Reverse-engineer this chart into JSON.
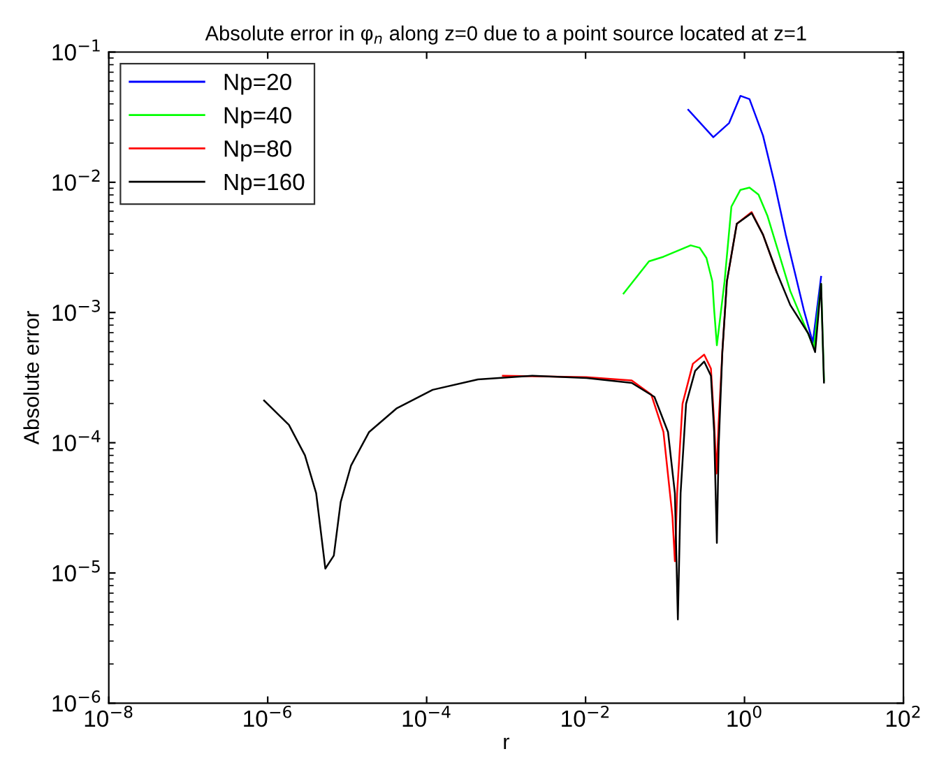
{
  "chart_data": {
    "type": "line",
    "title": "Absolute error in φ$_{n}$ along z=0 due to a point source located at z=1",
    "xlabel": "r",
    "ylabel": "Absolute error",
    "log": "xy",
    "grid": false,
    "legend": "top left",
    "line_style": "solid",
    "marker": "none",
    "xlim": [
      1e-08,
      100
    ],
    "ylim": [
      1e-06,
      0.1
    ],
    "xticks": [
      {
        "value": 1e-08,
        "label": "10$^{−8}$"
      },
      {
        "value": 1e-06,
        "label": "10$^{−6}$"
      },
      {
        "value": 0.0001,
        "label": "10$^{−4}$"
      },
      {
        "value": 0.01,
        "label": "10$^{−2}$"
      },
      {
        "value": 1,
        "label": "10$^{0}$"
      },
      {
        "value": 100,
        "label": "10$^{2}$"
      }
    ],
    "yticks": [
      {
        "value": 1e-06,
        "label": "10$^{−6}$"
      },
      {
        "value": 1e-05,
        "label": "10$^{−5}$"
      },
      {
        "value": 0.0001,
        "label": "10$^{−4}$"
      },
      {
        "value": 0.001,
        "label": "10$^{−3}$"
      },
      {
        "value": 0.01,
        "label": "10$^{−2}$"
      },
      {
        "value": 0.1,
        "label": "10$^{−1}$"
      }
    ],
    "series": [
      {
        "name": "Np=20",
        "color": "#0000ff",
        "x": [
          0.196,
          0.405,
          0.64,
          0.889,
          1.156,
          1.71,
          2.38,
          3.3,
          4.29,
          5.57,
          7.24,
          9.2
        ],
        "values": [
          0.036,
          0.0222,
          0.0285,
          0.0461,
          0.0435,
          0.0228,
          0.0099,
          0.00396,
          0.00204,
          0.00105,
          0.00059,
          0.00188
        ]
      },
      {
        "name": "Np=40",
        "color": "#00ff00",
        "x": [
          0.0301,
          0.0628,
          0.0955,
          0.21,
          0.273,
          0.332,
          0.394,
          0.415,
          0.449,
          0.561,
          0.684,
          0.889,
          1.156,
          1.5,
          1.95,
          2.71,
          3.77,
          7.45,
          9.2,
          10.0
        ],
        "values": [
          0.0014,
          0.00247,
          0.00268,
          0.00328,
          0.00314,
          0.00262,
          0.00173,
          0.00105,
          0.00056,
          0.00173,
          0.0065,
          0.00875,
          0.0091,
          0.00805,
          0.0055,
          0.00284,
          0.00146,
          0.00054,
          0.00166,
          0.0003
        ]
      },
      {
        "name": "Np=80",
        "color": "#ff0000",
        "x": [
          0.00091,
          0.0103,
          0.0381,
          0.0672,
          0.0955,
          0.124,
          0.133,
          0.142,
          0.166,
          0.224,
          0.311,
          0.378,
          0.415,
          0.444,
          0.473,
          0.526,
          0.6,
          0.8,
          1.23,
          1.71,
          2.54
        ],
        "values": [
          0.000327,
          0.000319,
          0.000301,
          0.000234,
          0.000121,
          2.7e-05,
          1.23e-05,
          4.1e-05,
          0.000199,
          0.000404,
          0.000475,
          0.000371,
          0.000143,
          5.8e-05,
          0.000143,
          0.000497,
          0.00173,
          0.0048,
          0.0059,
          0.00396,
          0.00204
        ]
      },
      {
        "name": "Np=160",
        "color": "#000000",
        "x": [
          9e-07,
          1.85e-06,
          2.94e-06,
          4.07e-06,
          5.31e-06,
          6.79e-06,
          8.28e-06,
          1.12e-05,
          1.89e-05,
          4.16e-05,
          0.000119,
          0.000442,
          0.00213,
          0.0103,
          0.0381,
          0.0735,
          0.109,
          0.133,
          0.145,
          0.157,
          0.184,
          0.239,
          0.311,
          0.378,
          0.415,
          0.449,
          0.473,
          0.526,
          0.6,
          0.8,
          1.23,
          1.71,
          2.54,
          3.77,
          6.35,
          7.74,
          9.2,
          10.0
        ],
        "values": [
          0.000211,
          0.000137,
          8e-05,
          4.1e-05,
          1.08e-05,
          1.36e-05,
          3.5e-05,
          6.7e-05,
          0.000121,
          0.000183,
          0.000255,
          0.000306,
          0.000327,
          0.000314,
          0.000288,
          0.000225,
          0.000121,
          4.1e-05,
          4.4e-06,
          4.1e-05,
          0.000199,
          0.000356,
          0.00042,
          0.000327,
          0.000121,
          1.7e-05,
          9.4e-05,
          0.000497,
          0.00173,
          0.0048,
          0.0058,
          0.00396,
          0.00204,
          0.00114,
          0.00069,
          0.000497,
          0.00166,
          0.00029
        ]
      }
    ]
  }
}
